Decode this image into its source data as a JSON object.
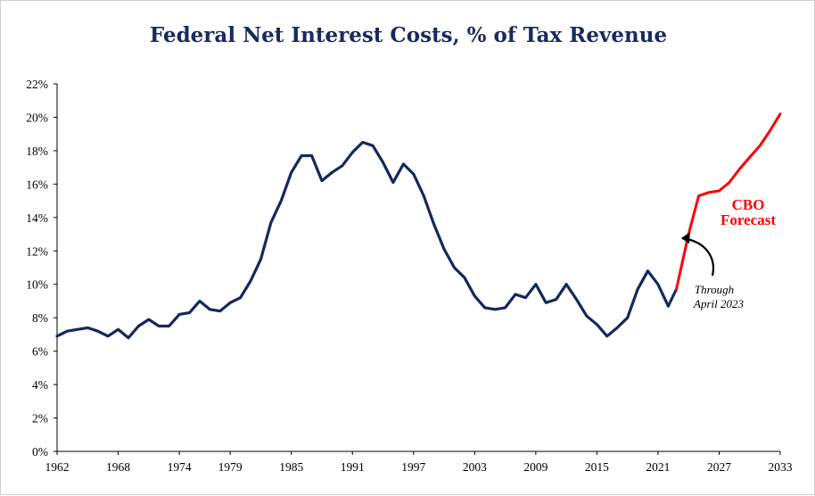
{
  "chart_data": {
    "type": "line",
    "title": "Federal Net Interest Costs, % of Tax Revenue",
    "xlabel": "",
    "ylabel": "",
    "xlim": [
      1962,
      2033
    ],
    "ylim": [
      0,
      22
    ],
    "y_ticks": [
      "0%",
      "2%",
      "4%",
      "6%",
      "8%",
      "10%",
      "12%",
      "14%",
      "16%",
      "18%",
      "20%",
      "22%"
    ],
    "x_ticks": [
      "1962",
      "1968",
      "1974",
      "1979",
      "1985",
      "1991",
      "1997",
      "2003",
      "2009",
      "2015",
      "2021",
      "2027",
      "2033"
    ],
    "grid": false,
    "series": [
      {
        "style": "historical",
        "color": "#14285c",
        "x": [
          1962,
          1963,
          1964,
          1965,
          1966,
          1967,
          1968,
          1969,
          1970,
          1971,
          1972,
          1973,
          1974,
          1975,
          1976,
          1977,
          1978,
          1979,
          1980,
          1981,
          1982,
          1983,
          1984,
          1985,
          1986,
          1987,
          1988,
          1989,
          1990,
          1991,
          1992,
          1993,
          1994,
          1995,
          1996,
          1997,
          1998,
          1999,
          2000,
          2001,
          2002,
          2003,
          2004,
          2005,
          2006,
          2007,
          2008,
          2009,
          2010,
          2011,
          2012,
          2013,
          2014,
          2015,
          2016,
          2017,
          2018,
          2019,
          2020,
          2021,
          2022
        ],
        "y": [
          6.9,
          7.2,
          7.3,
          7.4,
          7.2,
          6.9,
          7.3,
          6.8,
          7.5,
          7.9,
          7.5,
          7.5,
          8.2,
          8.3,
          9.0,
          8.5,
          8.4,
          8.9,
          9.2,
          10.2,
          11.5,
          13.7,
          15.0,
          16.7,
          17.7,
          17.7,
          16.2,
          16.7,
          17.1,
          17.9,
          18.5,
          18.3,
          17.3,
          16.1,
          17.2,
          16.6,
          15.3,
          13.6,
          12.1,
          11.0,
          10.4,
          9.3,
          8.6,
          8.5,
          8.6,
          9.4,
          9.2,
          10.0,
          8.9,
          9.1,
          10.0,
          9.1,
          8.1,
          7.6,
          6.9,
          7.4,
          8.0,
          9.7,
          10.8,
          10.0,
          8.7
        ]
      },
      {
        "style": "through-april-2023",
        "color": "#14285c",
        "x": [
          2022,
          2022.8
        ],
        "y": [
          8.7,
          9.7
        ]
      },
      {
        "name": "CBO Forecast",
        "color": "#ff0000",
        "x": [
          2022.8,
          2024,
          2025,
          2026,
          2027,
          2028,
          2029,
          2030,
          2031,
          2032,
          2033
        ],
        "y": [
          9.7,
          13.0,
          15.3,
          15.5,
          15.6,
          16.1,
          16.9,
          17.6,
          18.3,
          19.2,
          20.2
        ]
      }
    ],
    "annotations": {
      "forecast_label": [
        "CBO",
        "Forecast"
      ],
      "arrow_note": [
        "Through",
        "April 2023"
      ]
    }
  }
}
